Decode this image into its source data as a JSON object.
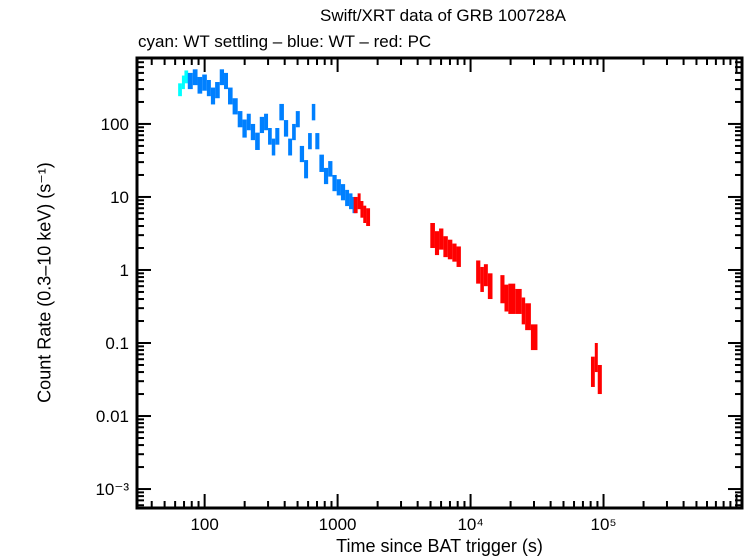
{
  "chart_data": {
    "type": "scatter",
    "title": "Swift/XRT data of GRB 100728A",
    "subtitle": "cyan: WT settling – blue: WT – red: PC",
    "xlabel": "Time since BAT trigger (s)",
    "ylabel": "Count Rate (0.3–10 keV) (s⁻¹)",
    "xscale": "log",
    "yscale": "log",
    "xlim": [
      31,
      1100000
    ],
    "ylim": [
      0.00055,
      800
    ],
    "grid": false,
    "xticks": [
      {
        "v": 100,
        "label": "100"
      },
      {
        "v": 1000,
        "label": "1000"
      },
      {
        "v": 10000,
        "label": "10⁴"
      },
      {
        "v": 100000,
        "label": "10⁵"
      }
    ],
    "yticks": [
      {
        "v": 0.001,
        "label": "10⁻³"
      },
      {
        "v": 0.01,
        "label": "0.01"
      },
      {
        "v": 0.1,
        "label": "0.1"
      },
      {
        "v": 1,
        "label": "1"
      },
      {
        "v": 10,
        "label": "10"
      },
      {
        "v": 100,
        "label": "100"
      }
    ],
    "series": [
      {
        "mode": "WT settling",
        "color": "#00ffff",
        "points": [
          [
            66,
            300,
            60
          ],
          [
            69,
            380,
            80
          ],
          [
            72,
            450,
            90
          ]
        ]
      },
      {
        "mode": "WT",
        "color": "#0080ff",
        "points": [
          [
            78,
            400,
            100
          ],
          [
            85,
            450,
            110
          ],
          [
            92,
            350,
            90
          ],
          [
            100,
            380,
            95
          ],
          [
            108,
            320,
            80
          ],
          [
            115,
            250,
            65
          ],
          [
            125,
            300,
            75
          ],
          [
            135,
            450,
            110
          ],
          [
            145,
            400,
            100
          ],
          [
            155,
            250,
            65
          ],
          [
            170,
            180,
            45
          ],
          [
            185,
            120,
            30
          ],
          [
            200,
            90,
            25
          ],
          [
            215,
            110,
            28
          ],
          [
            230,
            80,
            20
          ],
          [
            250,
            60,
            16
          ],
          [
            270,
            100,
            25
          ],
          [
            290,
            110,
            28
          ],
          [
            310,
            70,
            18
          ],
          [
            330,
            50,
            13
          ],
          [
            350,
            70,
            18
          ],
          [
            380,
            150,
            38
          ],
          [
            410,
            90,
            23
          ],
          [
            440,
            50,
            13
          ],
          [
            470,
            80,
            20
          ],
          [
            500,
            120,
            30
          ],
          [
            540,
            40,
            10
          ],
          [
            580,
            25,
            7
          ],
          [
            620,
            60,
            15
          ],
          [
            660,
            150,
            38
          ],
          [
            700,
            60,
            15
          ],
          [
            760,
            30,
            8
          ],
          [
            820,
            20,
            5
          ],
          [
            880,
            25,
            6
          ],
          [
            950,
            16,
            4
          ],
          [
            1020,
            14,
            3.5
          ],
          [
            1100,
            12,
            3
          ],
          [
            1180,
            10,
            2.5
          ],
          [
            1260,
            9,
            2.2
          ],
          [
            1330,
            8,
            2
          ]
        ]
      },
      {
        "mode": "PC",
        "color": "#ff0000",
        "points": [
          [
            1380,
            8,
            2
          ],
          [
            1450,
            9,
            2.2
          ],
          [
            1520,
            7,
            1.8
          ],
          [
            1600,
            6,
            1.6
          ],
          [
            1680,
            5.5,
            1.5
          ],
          [
            5200,
            3.2,
            1.2
          ],
          [
            5600,
            2.5,
            0.9
          ],
          [
            6000,
            2.8,
            0.9
          ],
          [
            6500,
            2.2,
            0.7
          ],
          [
            7000,
            2.0,
            0.6
          ],
          [
            7600,
            1.8,
            0.5
          ],
          [
            8100,
            1.6,
            0.5
          ],
          [
            11500,
            1.0,
            0.35
          ],
          [
            12200,
            0.8,
            0.3
          ],
          [
            13000,
            0.9,
            0.3
          ],
          [
            14000,
            0.65,
            0.25
          ],
          [
            17500,
            0.6,
            0.25
          ],
          [
            18500,
            0.45,
            0.18
          ],
          [
            20000,
            0.45,
            0.2
          ],
          [
            23500,
            0.4,
            0.15
          ],
          [
            25000,
            0.3,
            0.12
          ],
          [
            26500,
            0.25,
            0.1
          ],
          [
            30500,
            0.13,
            0.05
          ],
          [
            84000,
            0.045,
            0.02
          ],
          [
            88000,
            0.07,
            0.03
          ],
          [
            93000,
            0.035,
            0.015
          ]
        ]
      }
    ]
  }
}
